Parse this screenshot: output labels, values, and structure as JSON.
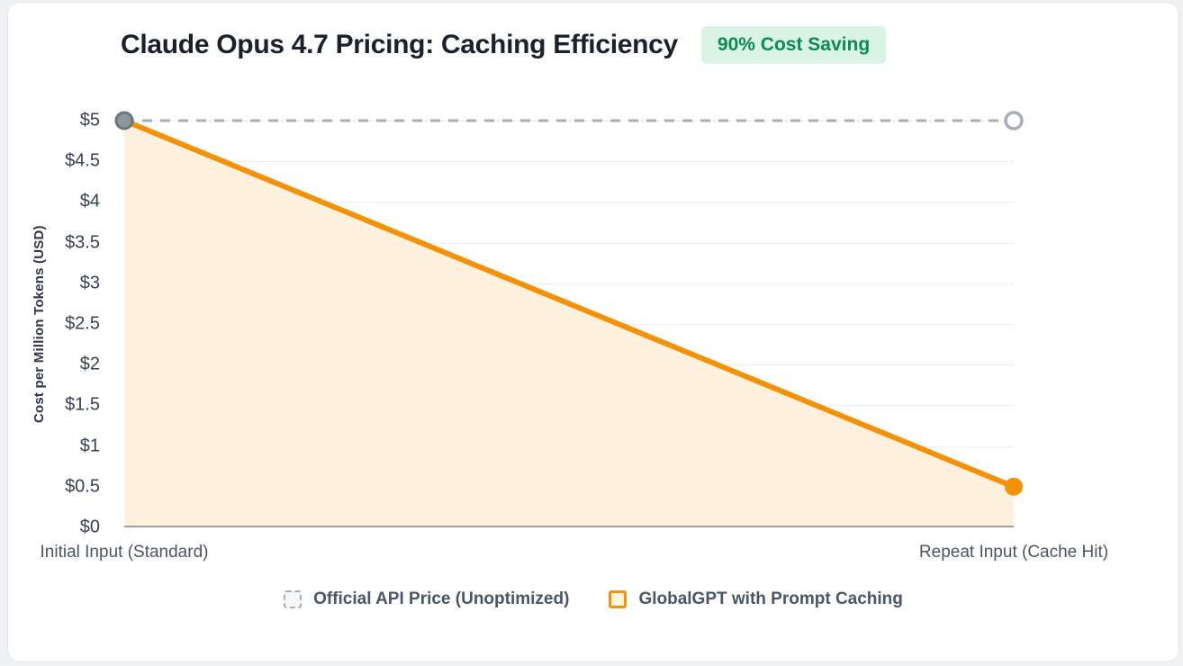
{
  "header": {
    "title": "Claude Opus 4.7 Pricing: Caching Efficiency",
    "badge": "90% Cost Saving"
  },
  "chart_data": {
    "type": "line",
    "title": "Claude Opus 4.7 Pricing: Caching Efficiency",
    "categories": [
      "Initial Input (Standard)",
      "Repeat Input (Cache Hit)"
    ],
    "series": [
      {
        "name": "Official API Price (Unoptimized)",
        "values": [
          5,
          5
        ],
        "style": "dashed",
        "color": "#A7AEB6"
      },
      {
        "name": "GlobalGPT with Prompt Caching",
        "values": [
          5,
          0.5
        ],
        "style": "solid-area",
        "color": "#F39208",
        "fill": "#FDF1DE"
      }
    ],
    "ylabel": "Cost per Million Tokens (USD)",
    "xlabel": "",
    "ylim": [
      0,
      5
    ],
    "ytick_values": [
      0,
      0.5,
      1,
      1.5,
      2,
      2.5,
      3,
      3.5,
      4,
      4.5,
      5
    ],
    "ytick_labels": [
      "$0",
      "$0.5",
      "$1",
      "$1.5",
      "$2",
      "$2.5",
      "$3",
      "$3.5",
      "$4",
      "$4.5",
      "$5"
    ],
    "grid": true,
    "legend_position": "bottom"
  },
  "colors": {
    "orange": "#F39208",
    "area_fill": "#FDF1DE",
    "dashed_gray": "#A7AEB6",
    "marker_gray_fill": "#8F969E",
    "marker_gray_stroke": "#6E757D",
    "marker_hollow_fill": "#FFFFFF",
    "badge_bg": "#D9F3E5",
    "badge_text": "#0B8A52",
    "axis_line": "#9AA1A8",
    "grid_line": "#ECEEF0"
  }
}
